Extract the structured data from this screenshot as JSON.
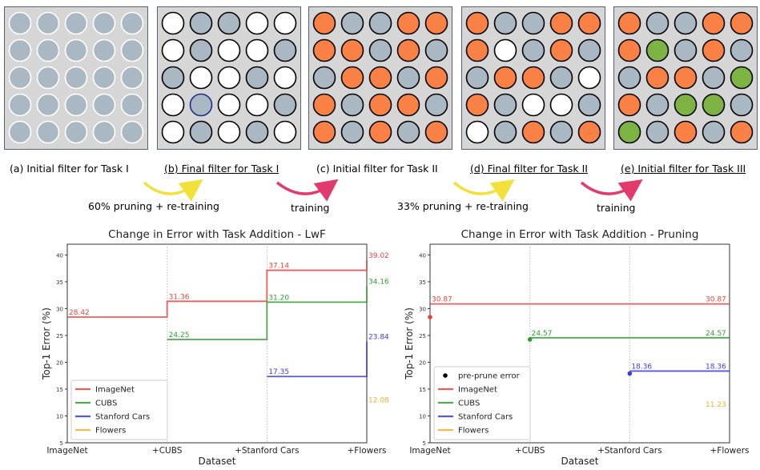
{
  "colors": {
    "panel_bg": "#d6d6d6",
    "gray": "#a9b8c2",
    "white": "#ffffff",
    "orange": "#fa8146",
    "green": "#7cb342",
    "stroke_black": "#000000",
    "stroke_blue": "#1e2d8c",
    "arrow_yellow": "#f3e13b",
    "arrow_pink": "#e23a6c",
    "red": "#e8433f",
    "series_green": "#2e9e2e",
    "series_blue": "#3b3be0",
    "series_orange": "#f0b030"
  },
  "panels": [
    {
      "caption": "(a) Initial filter for Task I",
      "underline": false,
      "grid": [
        [
          "g",
          "g",
          "g",
          "g",
          "g"
        ],
        [
          "g",
          "g",
          "g",
          "g",
          "g"
        ],
        [
          "g",
          "g",
          "g",
          "g",
          "g"
        ],
        [
          "g",
          "g",
          "g",
          "g",
          "g"
        ],
        [
          "g",
          "g",
          "g",
          "g",
          "g"
        ]
      ],
      "stroke": "white"
    },
    {
      "caption": "(b) Final filter for Task I",
      "underline": true,
      "grid": [
        [
          "w",
          "G",
          "G",
          "w",
          "w"
        ],
        [
          "w",
          "G",
          "w",
          "w",
          "G"
        ],
        [
          "G",
          "w",
          "w",
          "G",
          "w"
        ],
        [
          "w",
          "B",
          "w",
          "w",
          "G"
        ],
        [
          "w",
          "G",
          "w",
          "G",
          "w"
        ]
      ],
      "stroke": "black"
    },
    {
      "caption": "(c) Initial filter for Task II",
      "underline": false,
      "grid": [
        [
          "o",
          "G",
          "G",
          "o",
          "o"
        ],
        [
          "o",
          "o",
          "G",
          "o",
          "G"
        ],
        [
          "G",
          "o",
          "o",
          "G",
          "o"
        ],
        [
          "o",
          "G",
          "o",
          "o",
          "G"
        ],
        [
          "o",
          "G",
          "o",
          "G",
          "o"
        ]
      ],
      "stroke": "black"
    },
    {
      "caption": "(d) Final filter for Task II",
      "underline": true,
      "grid": [
        [
          "o",
          "G",
          "G",
          "o",
          "o"
        ],
        [
          "o",
          "w",
          "G",
          "o",
          "G"
        ],
        [
          "G",
          "o",
          "o",
          "G",
          "w"
        ],
        [
          "o",
          "G",
          "w",
          "w",
          "G"
        ],
        [
          "w",
          "G",
          "o",
          "G",
          "o"
        ]
      ],
      "stroke": "black"
    },
    {
      "caption": "(e) Initial filter for Task III",
      "underline": true,
      "grid": [
        [
          "o",
          "G",
          "G",
          "o",
          "o"
        ],
        [
          "o",
          "n",
          "G",
          "o",
          "G"
        ],
        [
          "G",
          "o",
          "o",
          "G",
          "n"
        ],
        [
          "o",
          "G",
          "n",
          "n",
          "G"
        ],
        [
          "n",
          "G",
          "o",
          "G",
          "o"
        ]
      ],
      "stroke": "black"
    }
  ],
  "arrows": [
    {
      "label": "60% pruning + re-training",
      "color": "yellow"
    },
    {
      "label": "training",
      "color": "pink"
    },
    {
      "label": "33% pruning + re-training",
      "color": "yellow"
    },
    {
      "label": "training",
      "color": "pink"
    }
  ],
  "chart_data": [
    {
      "type": "line",
      "title": "Change in Error with Task Addition - LwF",
      "xlabel": "Dataset",
      "ylabel": "Top-1 Error (%)",
      "categories": [
        "ImageNet",
        "+CUBS",
        "+Stanford Cars",
        "+Flowers"
      ],
      "ylim": [
        5,
        42
      ],
      "yticks": [
        5,
        10,
        15,
        20,
        25,
        30,
        35,
        40
      ],
      "legend": "lower-left",
      "series": [
        {
          "name": "ImageNet",
          "color": "red",
          "steps": [
            28.42,
            31.36,
            37.14,
            39.02
          ],
          "start": 0,
          "labels": [
            "28.42",
            "31.36",
            "37.14",
            "39.02"
          ]
        },
        {
          "name": "CUBS",
          "color": "series_green",
          "steps": [
            24.25,
            31.2,
            34.16
          ],
          "start": 1,
          "labels": [
            "24.25",
            "31.20",
            "34.16"
          ]
        },
        {
          "name": "Stanford Cars",
          "color": "series_blue",
          "steps": [
            17.35,
            23.84
          ],
          "start": 2,
          "labels": [
            "17.35",
            "23.84"
          ]
        },
        {
          "name": "Flowers",
          "color": "series_orange",
          "steps": [
            12.08
          ],
          "start": 3,
          "labels": [
            "12.08"
          ]
        }
      ]
    },
    {
      "type": "line",
      "title": "Change in Error with Task Addition - Pruning",
      "xlabel": "Dataset",
      "ylabel": "Top-1 Error (%)",
      "categories": [
        "ImageNet",
        "+CUBS",
        "+Stanford Cars",
        "+Flowers"
      ],
      "ylim": [
        5,
        42
      ],
      "yticks": [
        5,
        10,
        15,
        20,
        25,
        30,
        35,
        40
      ],
      "legend": "lower-left",
      "pre_prune_label": "pre-prune error",
      "pre_prune": [
        {
          "x": 0,
          "y": 28.42,
          "color": "red"
        },
        {
          "x": 1,
          "y": 24.25,
          "color": "series_green"
        },
        {
          "x": 2,
          "y": 17.9,
          "color": "series_blue"
        }
      ],
      "series": [
        {
          "name": "ImageNet",
          "color": "red",
          "steps": [
            30.87,
            30.87,
            30.87,
            30.87
          ],
          "start": 0,
          "labels": [
            "30.87",
            "",
            "",
            "30.87"
          ]
        },
        {
          "name": "CUBS",
          "color": "series_green",
          "steps": [
            24.57,
            24.57,
            24.57
          ],
          "start": 1,
          "labels": [
            "24.57",
            "",
            "24.57"
          ]
        },
        {
          "name": "Stanford Cars",
          "color": "series_blue",
          "steps": [
            18.36,
            18.36
          ],
          "start": 2,
          "labels": [
            "18.36",
            "18.36"
          ]
        },
        {
          "name": "Flowers",
          "color": "series_orange",
          "steps": [
            11.23
          ],
          "start": 3,
          "labels": [
            "11.23"
          ]
        }
      ]
    }
  ]
}
